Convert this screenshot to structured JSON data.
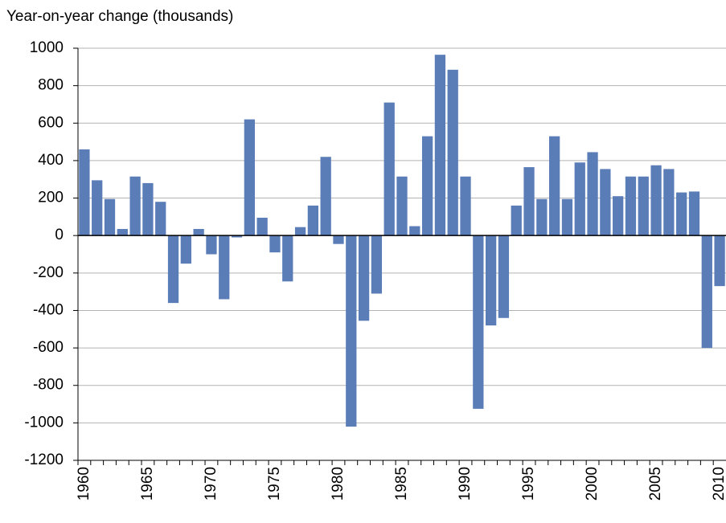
{
  "chart_data": {
    "type": "bar",
    "title": "Year-on-year change (thousands)",
    "categories": [
      "1960",
      null,
      null,
      null,
      null,
      "1965",
      null,
      null,
      null,
      null,
      "1970",
      null,
      null,
      null,
      null,
      "1975",
      null,
      null,
      null,
      null,
      "1980",
      null,
      null,
      null,
      null,
      "1985",
      null,
      null,
      null,
      null,
      "1990",
      null,
      null,
      null,
      null,
      "1995",
      null,
      null,
      null,
      null,
      "2000",
      null,
      null,
      null,
      null,
      "2005",
      null,
      null,
      null,
      null,
      "2010"
    ],
    "values": [
      460,
      295,
      195,
      35,
      315,
      280,
      180,
      -360,
      -150,
      35,
      -100,
      -340,
      -10,
      620,
      95,
      -90,
      -245,
      45,
      160,
      420,
      -45,
      -1020,
      -455,
      -310,
      710,
      315,
      50,
      530,
      965,
      885,
      315,
      -925,
      -480,
      -440,
      160,
      365,
      195,
      530,
      195,
      390,
      445,
      355,
      210,
      315,
      315,
      375,
      355,
      230,
      235,
      -600,
      -270
    ],
    "color": "#5a7db8",
    "ylim": [
      -1200,
      1000
    ],
    "yticks": [
      -1200,
      -1000,
      -800,
      -600,
      -400,
      -200,
      0,
      200,
      400,
      600,
      800,
      1000
    ],
    "grid": true
  }
}
